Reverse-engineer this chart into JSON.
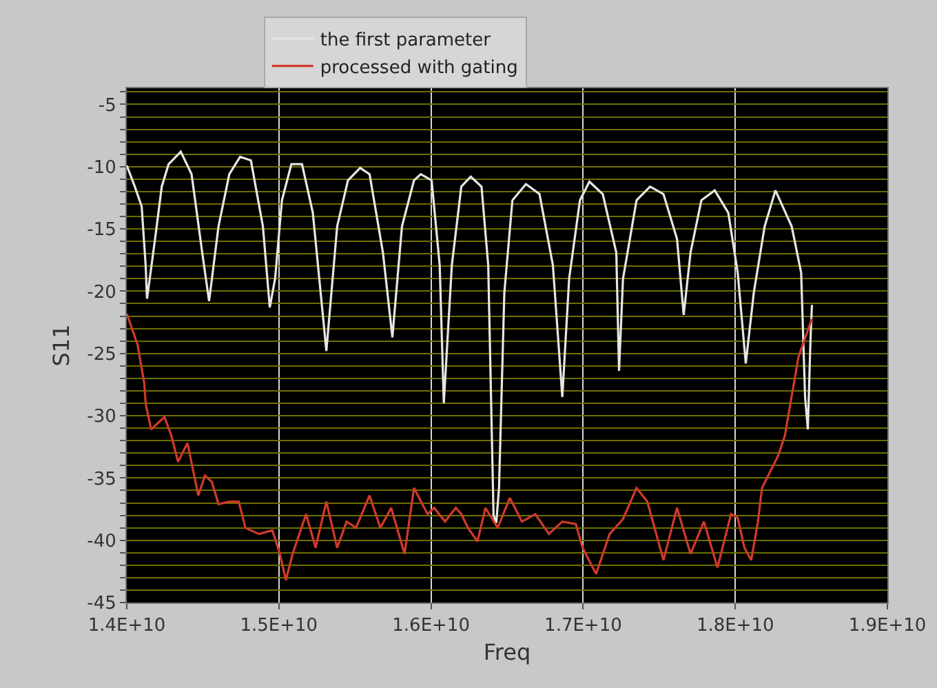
{
  "chart_data": {
    "type": "line",
    "xlabel": "Freq",
    "ylabel": "S11",
    "xlim": [
      14000000000,
      19000000000
    ],
    "xticks": [
      {
        "value": 14000000000,
        "label": "1.4E+10"
      },
      {
        "value": 15000000000,
        "label": "1.5E+10"
      },
      {
        "value": 16000000000,
        "label": "1.6E+10"
      },
      {
        "value": 17000000000,
        "label": "1.7E+10"
      },
      {
        "value": 18000000000,
        "label": "1.8E+10"
      },
      {
        "value": 19000000000,
        "label": "1.9E+10"
      }
    ],
    "ylim": [
      -45,
      -3.7
    ],
    "yticks": [
      -45,
      {
        "value": -44,
        "label": null
      },
      {
        "value": -43,
        "label": null
      },
      {
        "value": -42,
        "label": null
      },
      {
        "value": -41,
        "label": null
      },
      -40,
      {
        "value": -39,
        "label": null
      },
      {
        "value": -38,
        "label": null
      },
      {
        "value": -37,
        "label": null
      },
      {
        "value": -36,
        "label": null
      },
      -35,
      {
        "value": -34,
        "label": null
      },
      {
        "value": -33,
        "label": null
      },
      {
        "value": -32,
        "label": null
      },
      {
        "value": -31,
        "label": null
      },
      -30,
      {
        "value": -29,
        "label": null
      },
      {
        "value": -28,
        "label": null
      },
      {
        "value": -27,
        "label": null
      },
      {
        "value": -26,
        "label": null
      },
      -25,
      {
        "value": -24,
        "label": null
      },
      {
        "value": -23,
        "label": null
      },
      {
        "value": -22,
        "label": null
      },
      {
        "value": -21,
        "label": null
      },
      -20,
      {
        "value": -19,
        "label": null
      },
      {
        "value": -18,
        "label": null
      },
      {
        "value": -17,
        "label": null
      },
      {
        "value": -16,
        "label": null
      },
      -15,
      {
        "value": -14,
        "label": null
      },
      {
        "value": -13,
        "label": null
      },
      {
        "value": -12,
        "label": null
      },
      {
        "value": -11,
        "label": null
      },
      -10,
      {
        "value": -9,
        "label": null
      },
      {
        "value": -8,
        "label": null
      },
      {
        "value": -7,
        "label": null
      },
      {
        "value": -6,
        "label": null
      },
      -5,
      {
        "value": -4,
        "label": null
      }
    ],
    "grid": true,
    "legend": "top",
    "marker": "none",
    "line_style": "solid",
    "series": [
      {
        "name": "the first parameter",
        "color": "#e6e6e6",
        "x": [
          14000000000.0,
          14053000000.0,
          14098000000.0,
          14124000000.0,
          14133000000.0,
          14151000000.0,
          14186000000.0,
          14230000000.0,
          14275000000.0,
          14355000000.0,
          14426000000.0,
          14496000000.0,
          14541000000.0,
          14603000000.0,
          14674000000.0,
          14745000000.0,
          14816000000.0,
          14895000000.0,
          14940000000.0,
          14975000000.0,
          15020000000.0,
          15082000000.0,
          15152000000.0,
          15223000000.0,
          15312000000.0,
          15383000000.0,
          15454000000.0,
          15534000000.0,
          15596000000.0,
          15684000000.0,
          15746000000.0,
          15809000000.0,
          15888000000.0,
          15933000000.0,
          16004000000.0,
          16057000000.0,
          16084000000.0,
          16137000000.0,
          16199000000.0,
          16261000000.0,
          16332000000.0,
          16376000000.0,
          16411000000.0,
          16429000000.0,
          16447000000.0,
          16482000000.0,
          16535000000.0,
          16624000000.0,
          16713000000.0,
          16801000000.0,
          16863000000.0,
          16908000000.0,
          16979000000.0,
          17041000000.0,
          17129000000.0,
          17218000000.0,
          17236000000.0,
          17262000000.0,
          17351000000.0,
          17440000000.0,
          17528000000.0,
          17617000000.0,
          17661000000.0,
          17706000000.0,
          17777000000.0,
          17865000000.0,
          17954000000.0,
          18016000000.0,
          18069000000.0,
          18122000000.0,
          18193000000.0,
          18264000000.0,
          18371000000.0,
          18433000000.0,
          18459000000.0,
          18477000000.0,
          18495000000.0,
          18504000000.0
        ],
        "values": [
          -9.9,
          -11.6,
          -13.2,
          -17.9,
          -20.6,
          -19.0,
          -15.8,
          -11.6,
          -9.8,
          -8.8,
          -10.6,
          -16.9,
          -20.8,
          -14.8,
          -10.6,
          -9.2,
          -9.5,
          -14.8,
          -21.3,
          -19.0,
          -12.7,
          -9.8,
          -9.8,
          -13.7,
          -24.8,
          -14.8,
          -11.1,
          -10.1,
          -10.6,
          -16.9,
          -23.7,
          -14.8,
          -11.1,
          -10.6,
          -11.1,
          -17.9,
          -29.0,
          -17.9,
          -11.6,
          -10.8,
          -11.6,
          -17.9,
          -38.0,
          -38.6,
          -35.8,
          -20.1,
          -12.7,
          -11.4,
          -12.2,
          -17.9,
          -28.5,
          -19.0,
          -12.7,
          -11.2,
          -12.2,
          -16.9,
          -26.4,
          -19.0,
          -12.7,
          -11.6,
          -12.2,
          -15.8,
          -21.9,
          -16.9,
          -12.7,
          -11.9,
          -13.7,
          -18.5,
          -25.8,
          -20.1,
          -14.8,
          -11.9,
          -14.8,
          -18.5,
          -28.5,
          -31.1,
          -23.7,
          -21.1
        ]
      },
      {
        "name": "processed with gating",
        "color": "#d03a2a",
        "x": [
          14000000000.0,
          14071000000.0,
          14115000000.0,
          14124000000.0,
          14160000000.0,
          14204000000.0,
          14248000000.0,
          14293000000.0,
          14337000000.0,
          14399000000.0,
          14470000000.0,
          14514000000.0,
          14559000000.0,
          14603000000.0,
          14674000000.0,
          14736000000.0,
          14780000000.0,
          14869000000.0,
          14957000000.0,
          15002000000.0,
          15046000000.0,
          15090000000.0,
          15179000000.0,
          15241000000.0,
          15312000000.0,
          15383000000.0,
          15445000000.0,
          15507000000.0,
          15596000000.0,
          15667000000.0,
          15738000000.0,
          15826000000.0,
          15888000000.0,
          15977000000.0,
          16021000000.0,
          16092000000.0,
          16163000000.0,
          16199000000.0,
          16243000000.0,
          16305000000.0,
          16358000000.0,
          16438000000.0,
          16518000000.0,
          16597000000.0,
          16686000000.0,
          16775000000.0,
          16863000000.0,
          16952000000.0,
          16996000000.0,
          17085000000.0,
          17174000000.0,
          17262000000.0,
          17351000000.0,
          17422000000.0,
          17528000000.0,
          17617000000.0,
          17706000000.0,
          17794000000.0,
          17883000000.0,
          17972000000.0,
          18016000000.0,
          18060000000.0,
          18105000000.0,
          18149000000.0,
          18176000000.0,
          18282000000.0,
          18326000000.0,
          18415000000.0,
          18504000000.0
        ],
        "values": [
          -21.8,
          -24.3,
          -27.4,
          -29.0,
          -31.1,
          -30.6,
          -30.1,
          -31.6,
          -33.7,
          -32.2,
          -36.4,
          -34.8,
          -35.3,
          -37.1,
          -36.9,
          -36.9,
          -39.0,
          -39.5,
          -39.2,
          -40.9,
          -43.2,
          -41.1,
          -37.9,
          -40.6,
          -36.9,
          -40.6,
          -38.5,
          -39.0,
          -36.4,
          -39.0,
          -37.4,
          -41.1,
          -35.8,
          -37.9,
          -37.4,
          -38.5,
          -37.4,
          -37.9,
          -39.0,
          -40.1,
          -37.4,
          -39.0,
          -36.6,
          -38.5,
          -37.9,
          -39.5,
          -38.5,
          -38.7,
          -40.6,
          -42.7,
          -39.5,
          -38.3,
          -35.8,
          -36.9,
          -41.6,
          -37.4,
          -41.1,
          -38.5,
          -42.2,
          -37.9,
          -38.2,
          -40.6,
          -41.6,
          -38.5,
          -35.8,
          -33.2,
          -31.6,
          -25.3,
          -22.2
        ]
      }
    ]
  }
}
